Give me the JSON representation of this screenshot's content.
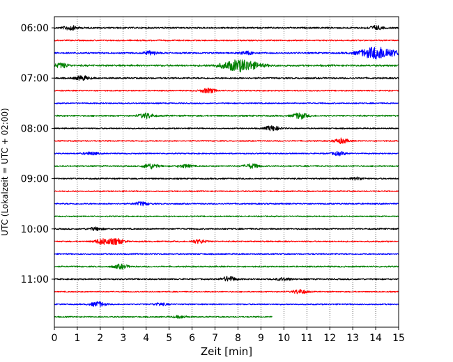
{
  "chart_data": {
    "type": "line",
    "title": "",
    "xlabel": "Zeit  [min]",
    "ylabel": "UTC (Lokalzeit = UTC + 02:00)",
    "xlim": [
      0,
      15
    ],
    "x_ticks": [
      0,
      1,
      2,
      3,
      4,
      5,
      6,
      7,
      8,
      9,
      10,
      11,
      12,
      13,
      14,
      15
    ],
    "row_interval_minutes": 15,
    "hour_labels": [
      {
        "label": "06:00",
        "row": 0
      },
      {
        "label": "07:00",
        "row": 4
      },
      {
        "label": "08:00",
        "row": 8
      },
      {
        "label": "09:00",
        "row": 12
      },
      {
        "label": "10:00",
        "row": 16
      },
      {
        "label": "11:00",
        "row": 20
      }
    ],
    "grid": "vertical dotted at minute ticks",
    "legend": "none",
    "colors": [
      "#000000",
      "#ff0000",
      "#0000ff",
      "#008000"
    ],
    "traces": [
      {
        "row": 0,
        "color": "#000000",
        "end_min": 15,
        "noise": 1.0,
        "events": [
          {
            "t": 0.7,
            "a": 3.0
          },
          {
            "t": 14.0,
            "a": 2.6
          }
        ]
      },
      {
        "row": 1,
        "color": "#ff0000",
        "end_min": 15,
        "noise": 0.9,
        "events": []
      },
      {
        "row": 2,
        "color": "#0000ff",
        "end_min": 15,
        "noise": 1.0,
        "events": [
          {
            "t": 4.2,
            "a": 2.4
          },
          {
            "t": 8.4,
            "a": 2.2
          },
          {
            "t": 14.1,
            "a": 8.5
          }
        ]
      },
      {
        "row": 3,
        "color": "#008000",
        "end_min": 15,
        "noise": 1.2,
        "events": [
          {
            "t": 0.3,
            "a": 3.0
          },
          {
            "t": 8.1,
            "a": 8.0
          }
        ]
      },
      {
        "row": 4,
        "color": "#000000",
        "end_min": 15,
        "noise": 1.0,
        "events": [
          {
            "t": 1.2,
            "a": 3.0
          }
        ]
      },
      {
        "row": 5,
        "color": "#ff0000",
        "end_min": 15,
        "noise": 0.8,
        "events": [
          {
            "t": 6.7,
            "a": 3.5
          }
        ]
      },
      {
        "row": 6,
        "color": "#0000ff",
        "end_min": 15,
        "noise": 0.8,
        "events": []
      },
      {
        "row": 7,
        "color": "#008000",
        "end_min": 15,
        "noise": 1.0,
        "events": [
          {
            "t": 4.0,
            "a": 3.5
          },
          {
            "t": 10.7,
            "a": 4.0
          }
        ]
      },
      {
        "row": 8,
        "color": "#000000",
        "end_min": 15,
        "noise": 0.8,
        "events": [
          {
            "t": 9.5,
            "a": 3.5
          }
        ]
      },
      {
        "row": 9,
        "color": "#ff0000",
        "end_min": 15,
        "noise": 0.8,
        "events": [
          {
            "t": 12.5,
            "a": 3.5
          }
        ]
      },
      {
        "row": 10,
        "color": "#0000ff",
        "end_min": 15,
        "noise": 0.8,
        "events": [
          {
            "t": 1.6,
            "a": 2.0
          },
          {
            "t": 12.4,
            "a": 2.5
          }
        ]
      },
      {
        "row": 11,
        "color": "#008000",
        "end_min": 15,
        "noise": 0.9,
        "events": [
          {
            "t": 4.2,
            "a": 3.5
          },
          {
            "t": 5.7,
            "a": 2.0
          },
          {
            "t": 8.6,
            "a": 3.0
          }
        ]
      },
      {
        "row": 12,
        "color": "#000000",
        "end_min": 15,
        "noise": 0.9,
        "events": [
          {
            "t": 13.2,
            "a": 1.8
          }
        ]
      },
      {
        "row": 13,
        "color": "#ff0000",
        "end_min": 15,
        "noise": 0.8,
        "events": []
      },
      {
        "row": 14,
        "color": "#0000ff",
        "end_min": 15,
        "noise": 0.9,
        "events": [
          {
            "t": 3.8,
            "a": 2.5
          }
        ]
      },
      {
        "row": 15,
        "color": "#008000",
        "end_min": 15,
        "noise": 0.8,
        "events": []
      },
      {
        "row": 16,
        "color": "#000000",
        "end_min": 15,
        "noise": 0.9,
        "events": [
          {
            "t": 1.8,
            "a": 2.0
          }
        ]
      },
      {
        "row": 17,
        "color": "#ff0000",
        "end_min": 15,
        "noise": 0.9,
        "events": [
          {
            "t": 2.1,
            "a": 4.0
          },
          {
            "t": 2.7,
            "a": 4.0
          },
          {
            "t": 6.3,
            "a": 2.5
          }
        ]
      },
      {
        "row": 18,
        "color": "#0000ff",
        "end_min": 15,
        "noise": 0.8,
        "events": []
      },
      {
        "row": 19,
        "color": "#008000",
        "end_min": 15,
        "noise": 0.9,
        "events": [
          {
            "t": 2.9,
            "a": 3.0
          }
        ]
      },
      {
        "row": 20,
        "color": "#000000",
        "end_min": 15,
        "noise": 0.9,
        "events": [
          {
            "t": 7.6,
            "a": 3.5
          },
          {
            "t": 10.0,
            "a": 2.0
          }
        ]
      },
      {
        "row": 21,
        "color": "#ff0000",
        "end_min": 15,
        "noise": 0.8,
        "events": [
          {
            "t": 10.7,
            "a": 3.0
          }
        ]
      },
      {
        "row": 22,
        "color": "#0000ff",
        "end_min": 15,
        "noise": 0.8,
        "events": [
          {
            "t": 1.9,
            "a": 3.5
          },
          {
            "t": 4.6,
            "a": 1.8
          }
        ]
      },
      {
        "row": 23,
        "color": "#008000",
        "end_min": 9.5,
        "noise": 0.9,
        "events": [
          {
            "t": 5.5,
            "a": 1.5
          }
        ]
      }
    ]
  }
}
